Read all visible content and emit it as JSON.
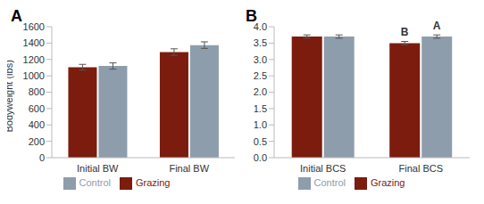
{
  "chart_data": [
    {
      "type": "bar",
      "title": "A",
      "y_label": "Bodyweight (lbs)",
      "categories": [
        "Initial BW",
        "Final BW"
      ],
      "series": [
        {
          "name": "Grazing",
          "color": "#7b1c0e",
          "values": [
            1105,
            1290
          ],
          "errors": [
            35,
            40
          ]
        },
        {
          "name": "Control",
          "color": "#8e9dab",
          "values": [
            1120,
            1375
          ],
          "errors": [
            38,
            40
          ]
        }
      ],
      "ylim": [
        0,
        1600
      ],
      "yticks": [
        0,
        200,
        400,
        600,
        800,
        1000,
        1200,
        1400,
        1600
      ],
      "grid": false,
      "legend": "bottom"
    },
    {
      "type": "bar",
      "title": "B",
      "categories": [
        "Initial BCS",
        "Final BCS"
      ],
      "series": [
        {
          "name": "Grazing",
          "color": "#7b1c0e",
          "values": [
            3.7,
            3.5
          ],
          "errors": [
            0.05,
            0.05
          ]
        },
        {
          "name": "Control",
          "color": "#8e9dab",
          "values": [
            3.7,
            3.7
          ],
          "errors": [
            0.05,
            0.05
          ]
        }
      ],
      "annotations": [
        {
          "category": "Final BCS",
          "series": "Grazing",
          "text": "B"
        },
        {
          "category": "Final BCS",
          "series": "Control",
          "text": "A"
        }
      ],
      "ylim": [
        0,
        4
      ],
      "yticks": [
        {
          "value": 0,
          "label": "0.0"
        },
        0.5,
        {
          "value": 1,
          "label": "1.0"
        },
        1.5,
        {
          "value": 2,
          "label": "2.0"
        },
        2.5,
        {
          "value": 3,
          "label": "3.0"
        },
        3.5,
        {
          "value": 4,
          "label": "4.0"
        }
      ],
      "grid": false,
      "legend": "bottom"
    }
  ]
}
